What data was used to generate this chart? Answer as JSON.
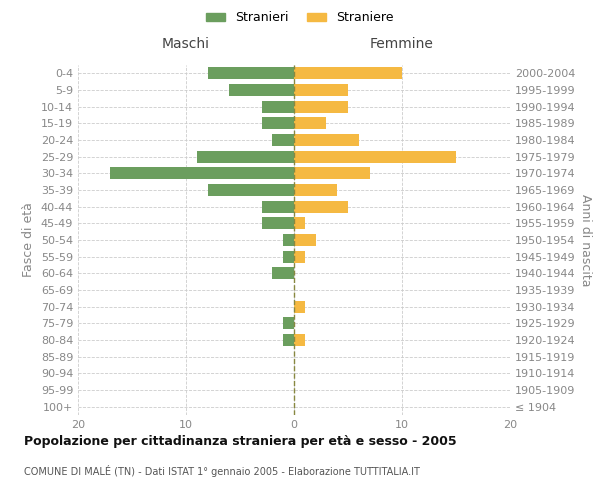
{
  "age_groups": [
    "100+",
    "95-99",
    "90-94",
    "85-89",
    "80-84",
    "75-79",
    "70-74",
    "65-69",
    "60-64",
    "55-59",
    "50-54",
    "45-49",
    "40-44",
    "35-39",
    "30-34",
    "25-29",
    "20-24",
    "15-19",
    "10-14",
    "5-9",
    "0-4"
  ],
  "birth_years": [
    "≤ 1904",
    "1905-1909",
    "1910-1914",
    "1915-1919",
    "1920-1924",
    "1925-1929",
    "1930-1934",
    "1935-1939",
    "1940-1944",
    "1945-1949",
    "1950-1954",
    "1955-1959",
    "1960-1964",
    "1965-1969",
    "1970-1974",
    "1975-1979",
    "1980-1984",
    "1985-1989",
    "1990-1994",
    "1995-1999",
    "2000-2004"
  ],
  "maschi": [
    0,
    0,
    0,
    0,
    1,
    1,
    0,
    0,
    2,
    1,
    1,
    3,
    3,
    8,
    17,
    9,
    2,
    3,
    3,
    6,
    8
  ],
  "femmine": [
    0,
    0,
    0,
    0,
    1,
    0,
    1,
    0,
    0,
    1,
    2,
    1,
    5,
    4,
    7,
    15,
    6,
    3,
    5,
    5,
    10
  ],
  "maschi_color": "#6b9e5e",
  "femmine_color": "#f5b942",
  "bg_color": "#ffffff",
  "grid_color": "#cccccc",
  "zero_line_color": "#888840",
  "title": "Popolazione per cittadinanza straniera per età e sesso - 2005",
  "subtitle": "COMUNE DI MALÉ (TN) - Dati ISTAT 1° gennaio 2005 - Elaborazione TUTTITALIA.IT",
  "header_left": "Maschi",
  "header_right": "Femmine",
  "ylabel_left": "Fasce di età",
  "ylabel_right": "Anni di nascita",
  "legend_m": "Stranieri",
  "legend_f": "Straniere",
  "xlim": 20,
  "xtick_labels": [
    "20",
    "10",
    "0",
    "10",
    "20"
  ]
}
